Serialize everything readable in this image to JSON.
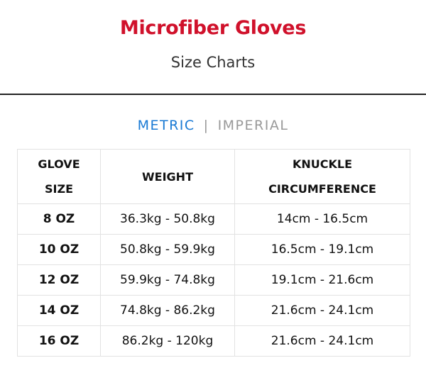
{
  "header": {
    "title": "Microfiber Gloves",
    "subtitle": "Size Charts"
  },
  "tabs": {
    "metric": "METRIC",
    "separator": "|",
    "imperial": "IMPERIAL",
    "active": "METRIC"
  },
  "colors": {
    "title": "#d0112b",
    "active_tab": "#1a7ad4",
    "inactive_tab": "#999999"
  },
  "table": {
    "headers": [
      [
        "GLOVE",
        "SIZE"
      ],
      [
        "WEIGHT"
      ],
      [
        "KNUCKLE",
        "CIRCUMFERENCE"
      ]
    ],
    "rows": [
      [
        "8 OZ",
        "36.3kg - 50.8kg",
        "14cm - 16.5cm"
      ],
      [
        "10 OZ",
        "50.8kg - 59.9kg",
        "16.5cm - 19.1cm"
      ],
      [
        "12 OZ",
        "59.9kg - 74.8kg",
        "19.1cm - 21.6cm"
      ],
      [
        "14 OZ",
        "74.8kg - 86.2kg",
        "21.6cm - 24.1cm"
      ],
      [
        "16 OZ",
        "86.2kg - 120kg",
        "21.6cm - 24.1cm"
      ]
    ]
  }
}
